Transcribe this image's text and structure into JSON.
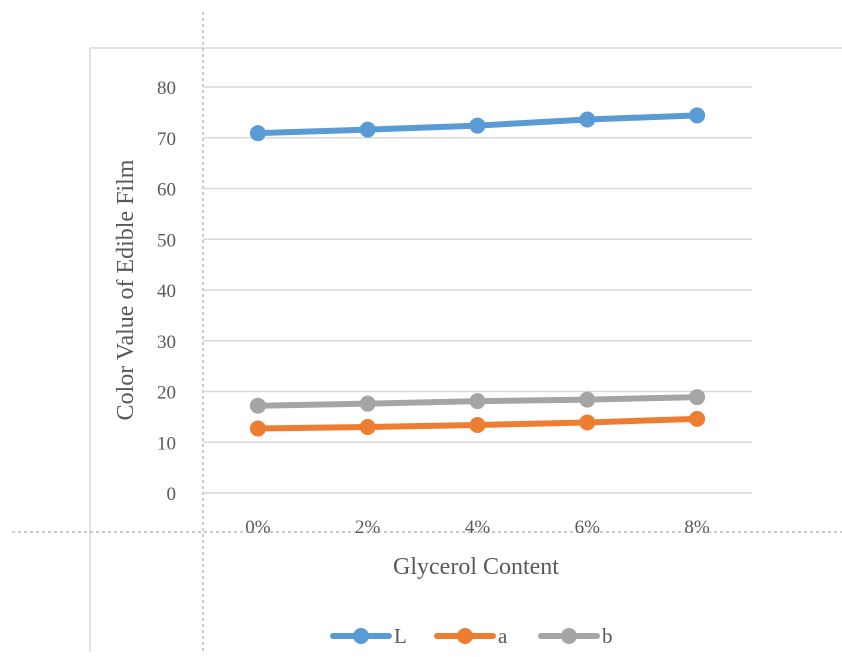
{
  "chart_data": {
    "type": "line",
    "title": "",
    "xlabel": "Glycerol Content",
    "ylabel": "Color Value of Edible Film",
    "categories": [
      "0%",
      "2%",
      "4%",
      "6%",
      "8%"
    ],
    "yticks": [
      "0",
      "10",
      "20",
      "30",
      "40",
      "50",
      "60",
      "70",
      "80"
    ],
    "ylim": [
      0,
      80
    ],
    "grid": true,
    "legend_position": "bottom",
    "series": [
      {
        "name": "L",
        "color": "#5B9BD5",
        "values": [
          70.9,
          71.6,
          72.4,
          73.6,
          74.4
        ]
      },
      {
        "name": "a",
        "color": "#ED7D31",
        "values": [
          12.7,
          13.0,
          13.4,
          13.9,
          14.6
        ]
      },
      {
        "name": "b",
        "color": "#A5A5A5",
        "values": [
          17.2,
          17.6,
          18.1,
          18.4,
          18.9
        ]
      }
    ]
  }
}
